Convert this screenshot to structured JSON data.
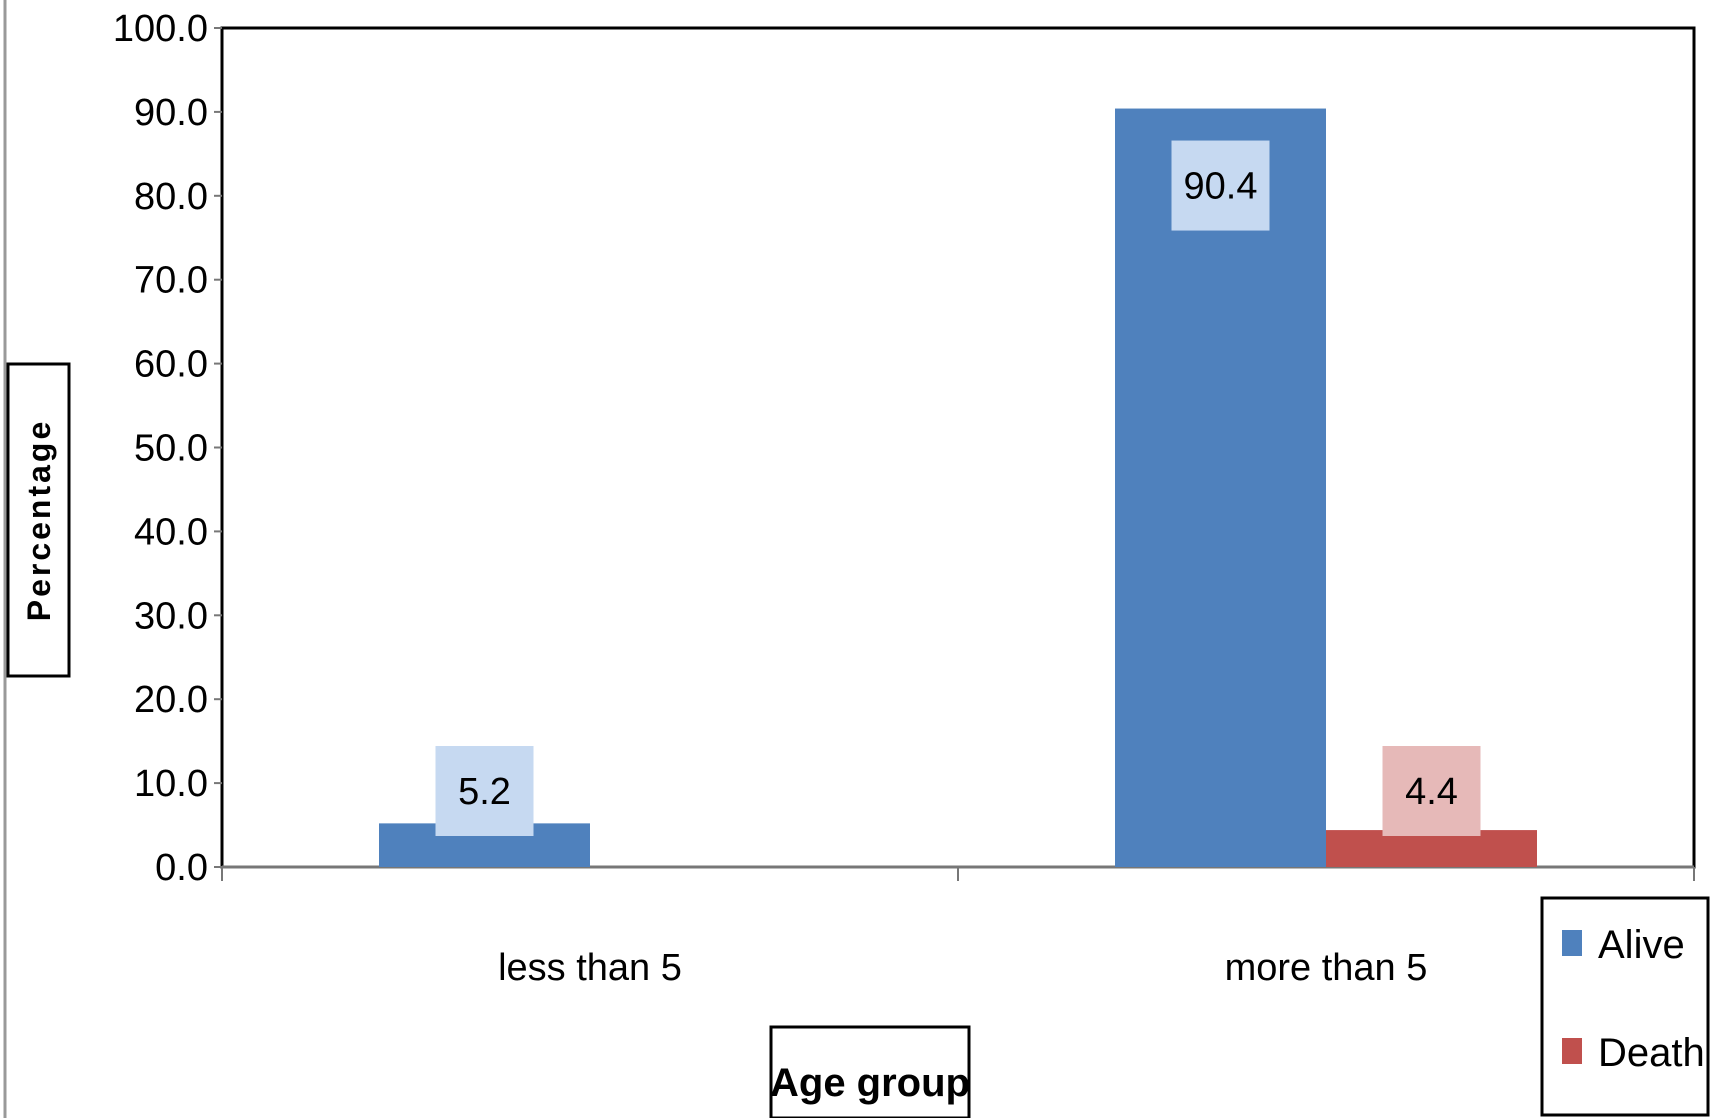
{
  "chart_data": {
    "type": "bar",
    "categories": [
      "less than 5",
      "more than 5"
    ],
    "series": [
      {
        "name": "Alive",
        "values": [
          5.2,
          90.4
        ],
        "color": "#4F81BD"
      },
      {
        "name": "Death",
        "values": [
          0,
          4.4
        ],
        "color": "#C0504D"
      }
    ],
    "data_labels": [
      {
        "series": "Alive",
        "category": "less than 5",
        "text": "5.2"
      },
      {
        "series": "Alive",
        "category": "more than 5",
        "text": "90.4"
      },
      {
        "series": "Death",
        "category": "more than 5",
        "text": "4.4"
      }
    ],
    "xlabel": "Age group",
    "ylabel": "Percentage",
    "ylim": [
      0,
      100
    ],
    "yticks": [
      "0.0",
      "10.0",
      "20.0",
      "30.0",
      "40.0",
      "50.0",
      "60.0",
      "70.0",
      "80.0",
      "90.0",
      "100.0"
    ],
    "legend": {
      "position": "bottom-right",
      "entries": [
        "Alive",
        "Death"
      ]
    },
    "grid": false
  }
}
